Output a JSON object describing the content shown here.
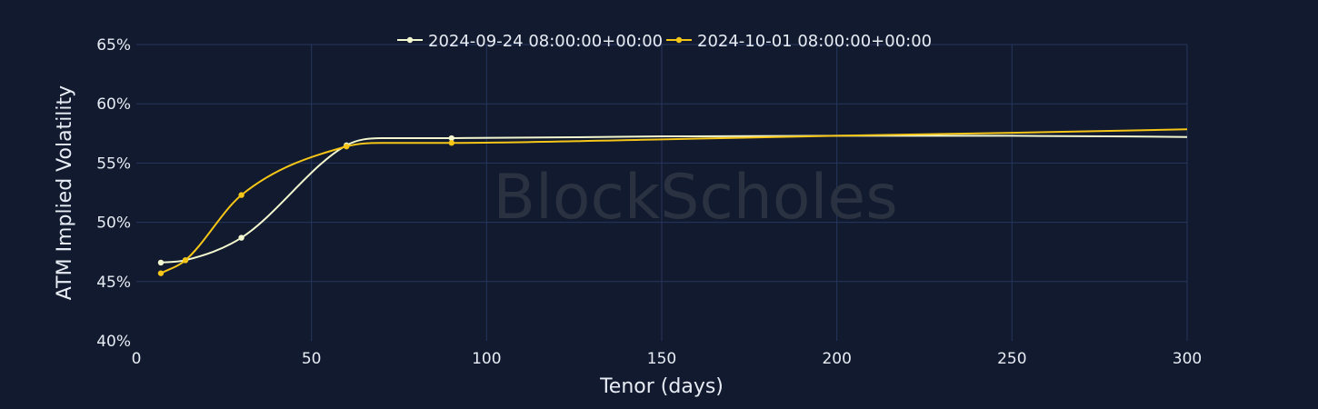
{
  "chart_data": {
    "type": "line",
    "xlabel": "Tenor (days)",
    "ylabel": "ATM Implied Volatility",
    "xlim": [
      0,
      300
    ],
    "ylim": [
      40,
      65
    ],
    "x_ticks": [
      0,
      50,
      100,
      150,
      200,
      250,
      300
    ],
    "y_ticks": [
      40,
      45,
      50,
      55,
      60,
      65
    ],
    "y_tick_suffix": "%",
    "grid": true,
    "legend_position": "top-center",
    "watermark": "BlockScholes",
    "series": [
      {
        "name": "2024-09-24 08:00:00+00:00",
        "color": "#f3f7cf",
        "marker_x": [
          7,
          14,
          30,
          60,
          90
        ],
        "marker_y": [
          46.6,
          46.8,
          48.7,
          56.5,
          57.1
        ],
        "x": [
          7,
          14,
          30,
          60,
          70,
          80,
          90,
          150,
          200,
          250,
          300
        ],
        "values": [
          46.6,
          46.8,
          48.7,
          56.5,
          57.1,
          57.1,
          57.1,
          57.25,
          57.3,
          57.3,
          57.2
        ]
      },
      {
        "name": "2024-10-01 08:00:00+00:00",
        "color": "#f5c518",
        "marker_x": [
          7,
          14,
          30,
          60,
          90
        ],
        "marker_y": [
          45.7,
          46.8,
          52.3,
          56.4,
          56.7
        ],
        "x": [
          7,
          14,
          30,
          60,
          70,
          80,
          90,
          150,
          200,
          250,
          300
        ],
        "values": [
          45.7,
          46.8,
          52.3,
          56.4,
          56.7,
          56.7,
          56.7,
          57.0,
          57.3,
          57.55,
          57.85
        ]
      }
    ]
  }
}
